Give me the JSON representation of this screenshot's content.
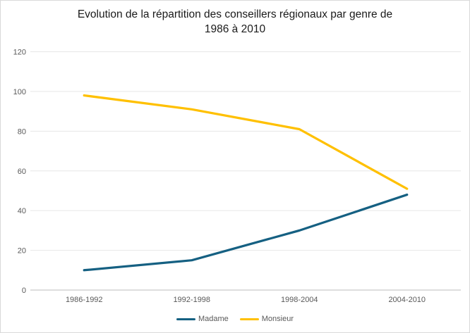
{
  "window": {
    "background": "#ffffff",
    "border_color": "#d9d9d9"
  },
  "title_lines": [
    "Evolution de la répartition des conseillers régionaux par genre de",
    "1986 à 2010"
  ],
  "chart_data": {
    "type": "line",
    "title": "Evolution de la répartition des conseillers régionaux par genre de 1986 à 2010",
    "categories": [
      "1986-1992",
      "1992-1998",
      "1998-2004",
      "2004-2010"
    ],
    "series": [
      {
        "name": "Madame",
        "color": "#156082",
        "values": [
          10,
          15,
          30,
          48
        ]
      },
      {
        "name": "Monsieur",
        "color": "#FFC000",
        "values": [
          98,
          91,
          81,
          51
        ]
      }
    ],
    "xlabel": "",
    "ylabel": "",
    "ylim": [
      0,
      120
    ],
    "yticks": [
      0,
      20,
      40,
      60,
      80,
      100,
      120
    ],
    "grid": "horizontal",
    "legend_position": "bottom",
    "line_width": 3.25,
    "colors": {
      "gridline": "#e7e7e7",
      "axis_line": "#bdbdbd",
      "tick_label": "#595959",
      "title": "#1a1a1a"
    }
  }
}
